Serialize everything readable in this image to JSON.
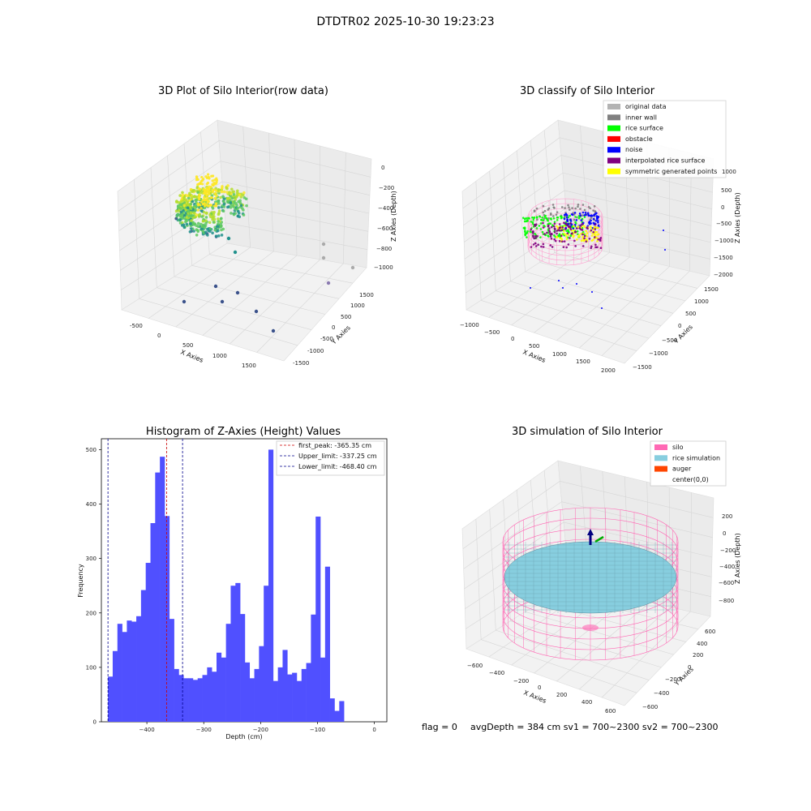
{
  "suptitle": "DTDTR02 2025-10-30 19:23:23",
  "colors": {
    "histogram_bar": "#5050ff",
    "first_peak_line": "#cc0000",
    "limit_lines": "#00008b",
    "silo_wire": "#ff66b3",
    "rice_simulation": "#87cedf",
    "auger": "#ff4500",
    "grid_pane": "#f2f2f2"
  },
  "panel_raw": {
    "title": "3D Plot of Silo Interior(row data)",
    "x_axis_label": "X Axies",
    "y_axis_label": "Y Axies",
    "z_axis_label": "Z Axies (Depth)",
    "x_ticks": [
      "-500",
      "0",
      "500",
      "1000",
      "1500"
    ],
    "y_ticks": [
      "-1500",
      "-1000",
      "-500",
      "0",
      "500",
      "1000",
      "1500"
    ],
    "z_ticks": [
      "0",
      "−200",
      "−400",
      "−600",
      "−800",
      "−1000"
    ],
    "colormap": "viridis"
  },
  "panel_classify": {
    "title": "3D classify of Silo Interior",
    "x_axis_label": "X Axies",
    "y_axis_label": "Y Axies",
    "z_axis_label": "Z Axies (Depth)",
    "x_ticks": [
      "−1000",
      "−500",
      "0",
      "500",
      "1000",
      "1500",
      "2000"
    ],
    "y_ticks": [
      "−1500",
      "−1000",
      "−500",
      "0",
      "500",
      "1000",
      "1500"
    ],
    "z_ticks": [
      "1000",
      "500",
      "0",
      "−500",
      "−1000",
      "−1500",
      "−2000"
    ],
    "legend": [
      {
        "label": "original data",
        "color": "#b3b3b3"
      },
      {
        "label": "inner wall",
        "color": "#808080"
      },
      {
        "label": "rice surface",
        "color": "#00ff00"
      },
      {
        "label": "obstacle",
        "color": "#ff0000"
      },
      {
        "label": "noise",
        "color": "#0000ff"
      },
      {
        "label": "interpolated rice surface",
        "color": "#800080"
      },
      {
        "label": "symmetric generated points",
        "color": "#ffff00"
      }
    ]
  },
  "panel_simulation": {
    "title": "3D simulation of Silo Interior",
    "x_axis_label": "X Axies",
    "y_axis_label": "Y Axies",
    "z_axis_label": "Z Axies (Depth)",
    "x_ticks": [
      "−600",
      "−400",
      "−200",
      "0",
      "200",
      "400",
      "600"
    ],
    "y_ticks": [
      "−600",
      "−400",
      "−200",
      "0",
      "200",
      "400",
      "600"
    ],
    "z_ticks": [
      "200",
      "0",
      "−200",
      "−400",
      "−600",
      "−800"
    ],
    "legend": [
      {
        "label": "silo",
        "color": "#ff69b4"
      },
      {
        "label": "rice simulation",
        "color": "#87cedf"
      },
      {
        "label": "auger",
        "color": "#ff4500"
      },
      {
        "label": "center(0,0)",
        "color": ""
      }
    ]
  },
  "footer": {
    "flag": "flag = 0",
    "stats": "avgDepth = 384 cm  sv1 = 700~2300  sv2 = 700~2300"
  },
  "chart_data": {
    "type": "bar",
    "title": "Histogram of Z-Axies (Height) Values",
    "xlabel": "Depth (cm)",
    "ylabel": "Frequency",
    "xlim": [
      -480,
      22
    ],
    "ylim": [
      0,
      520
    ],
    "x_ticks": [
      -400,
      -300,
      -200,
      -100,
      0
    ],
    "y_ticks": [
      0,
      100,
      200,
      300,
      400,
      500
    ],
    "bin_width": 8.3,
    "bin_start": -468.4,
    "values": [
      83,
      130,
      180,
      165,
      186,
      184,
      194,
      242,
      292,
      365,
      458,
      487,
      378,
      189,
      97,
      86,
      80,
      80,
      77,
      80,
      86,
      100,
      92,
      127,
      118,
      180,
      250,
      255,
      198,
      109,
      80,
      97,
      139,
      250,
      500,
      75,
      100,
      132,
      87,
      90,
      75,
      97,
      108,
      197,
      377,
      118,
      285,
      43,
      20,
      38
    ],
    "vlines": [
      {
        "label": "first_peak: -365.35 cm",
        "value": -365.35,
        "style": "dashed",
        "color": "#cc0000"
      },
      {
        "label": "Upper_limit: -337.25 cm",
        "value": -337.25,
        "style": "dashed",
        "color": "#00008b"
      },
      {
        "label": "Lower_limit: -468.40 cm",
        "value": -468.4,
        "style": "dashed",
        "color": "#00008b"
      }
    ],
    "legend_position": "top-right"
  }
}
